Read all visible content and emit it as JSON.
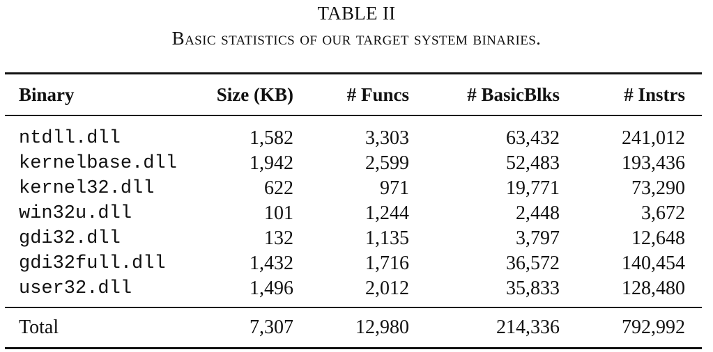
{
  "caption": {
    "label": "TABLE II",
    "title": "Basic statistics of our target system binaries."
  },
  "table": {
    "headers": [
      "Binary",
      "Size (KB)",
      "# Funcs",
      "# BasicBlks",
      "# Instrs"
    ],
    "rows": [
      {
        "binary": "ntdll.dll",
        "size": "1,582",
        "funcs": "3,303",
        "basic_blocks": "63,432",
        "instrs": "241,012"
      },
      {
        "binary": "kernelbase.dll",
        "size": "1,942",
        "funcs": "2,599",
        "basic_blocks": "52,483",
        "instrs": "193,436"
      },
      {
        "binary": "kernel32.dll",
        "size": "622",
        "funcs": "971",
        "basic_blocks": "19,771",
        "instrs": "73,290"
      },
      {
        "binary": "win32u.dll",
        "size": "101",
        "funcs": "1,244",
        "basic_blocks": "2,448",
        "instrs": "3,672"
      },
      {
        "binary": "gdi32.dll",
        "size": "132",
        "funcs": "1,135",
        "basic_blocks": "3,797",
        "instrs": "12,648"
      },
      {
        "binary": "gdi32full.dll",
        "size": "1,432",
        "funcs": "1,716",
        "basic_blocks": "36,572",
        "instrs": "140,454"
      },
      {
        "binary": "user32.dll",
        "size": "1,496",
        "funcs": "2,012",
        "basic_blocks": "35,833",
        "instrs": "128,480"
      }
    ],
    "total": {
      "label": "Total",
      "size": "7,307",
      "funcs": "12,980",
      "basic_blocks": "214,336",
      "instrs": "792,992"
    }
  }
}
